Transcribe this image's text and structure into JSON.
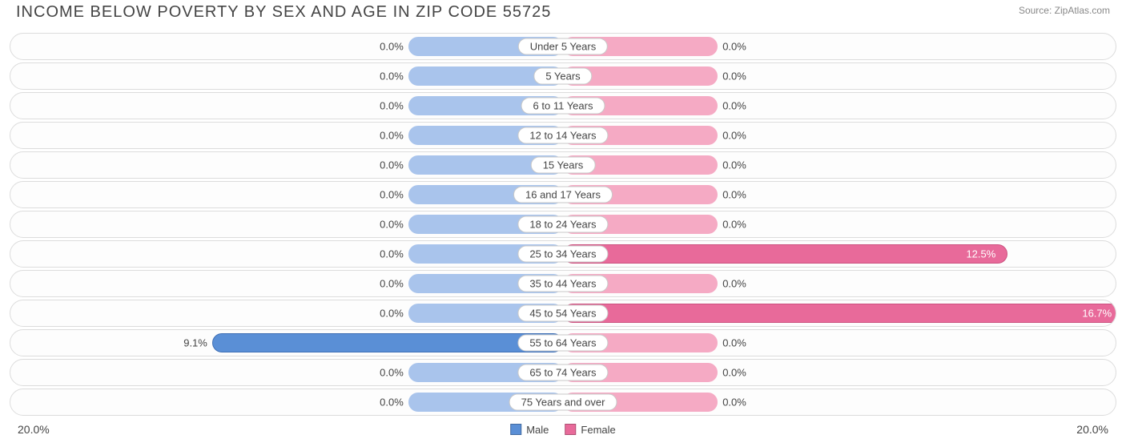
{
  "title": "INCOME BELOW POVERTY BY SEX AND AGE IN ZIP CODE 55725",
  "source": "Source: ZipAtlas.com",
  "axis_max_label": "20.0%",
  "axis_max": 20.0,
  "male_min_bar_pct": 2.0,
  "female_min_bar_pct": 2.0,
  "colors": {
    "male_zero": "#a9c4ec",
    "male_value": "#5a8fd6",
    "male_value_border": "#3f6fb5",
    "female_zero": "#f5aac4",
    "female_value": "#e86a9a",
    "female_value_border": "#cc517f",
    "row_border": "#dcdcdc",
    "pill_border": "#c8c8c8",
    "text": "#444444",
    "bg": "#ffffff"
  },
  "legend": {
    "male": "Male",
    "female": "Female"
  },
  "rows": [
    {
      "label": "Under 5 Years",
      "male": 0.0,
      "female": 0.0
    },
    {
      "label": "5 Years",
      "male": 0.0,
      "female": 0.0
    },
    {
      "label": "6 to 11 Years",
      "male": 0.0,
      "female": 0.0
    },
    {
      "label": "12 to 14 Years",
      "male": 0.0,
      "female": 0.0
    },
    {
      "label": "15 Years",
      "male": 0.0,
      "female": 0.0
    },
    {
      "label": "16 and 17 Years",
      "male": 0.0,
      "female": 0.0
    },
    {
      "label": "18 to 24 Years",
      "male": 0.0,
      "female": 0.0
    },
    {
      "label": "25 to 34 Years",
      "male": 0.0,
      "female": 12.5
    },
    {
      "label": "35 to 44 Years",
      "male": 0.0,
      "female": 0.0
    },
    {
      "label": "45 to 54 Years",
      "male": 0.0,
      "female": 16.7
    },
    {
      "label": "55 to 64 Years",
      "male": 9.1,
      "female": 0.0
    },
    {
      "label": "65 to 74 Years",
      "male": 0.0,
      "female": 0.0
    },
    {
      "label": "75 Years and over",
      "male": 0.0,
      "female": 0.0
    }
  ]
}
